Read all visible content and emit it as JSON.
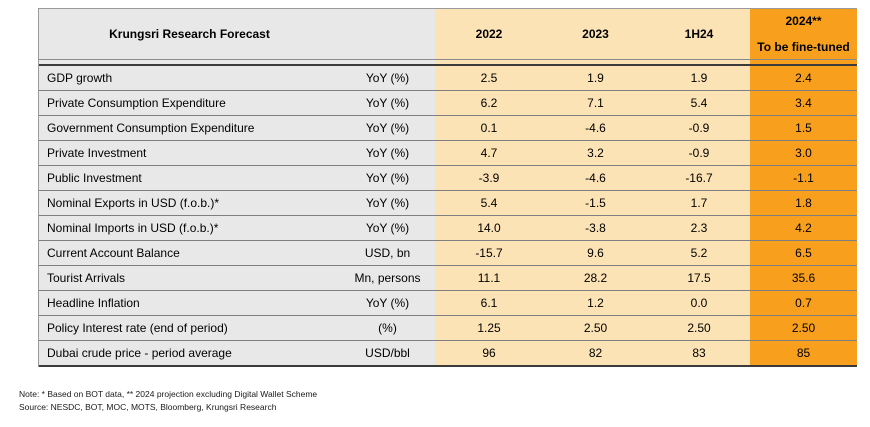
{
  "colors": {
    "header_gray": "#E8E8E8",
    "data_peach": "#FCE3B5",
    "forecast_orange": "#F8A01E"
  },
  "chart_data": {
    "type": "table",
    "title": "Krungsri Research Forecast",
    "column_headers": [
      "2022",
      "2023",
      "1H24",
      "2024**"
    ],
    "forecast_note": "To be fine-tuned",
    "layout": {
      "year_columns_bg": "light peach",
      "forecast_column_bg": "orange",
      "label_columns_bg": "light gray"
    },
    "rows": [
      {
        "label": "GDP growth",
        "unit": "YoY (%)",
        "values": [
          "2.5",
          "1.9",
          "1.9",
          "2.4"
        ]
      },
      {
        "label": "Private Consumption Expenditure",
        "unit": "YoY (%)",
        "values": [
          "6.2",
          "7.1",
          "5.4",
          "3.4"
        ]
      },
      {
        "label": "Government Consumption Expenditure",
        "unit": "YoY (%)",
        "values": [
          "0.1",
          "-4.6",
          "-0.9",
          "1.5"
        ]
      },
      {
        "label": "Private Investment",
        "unit": "YoY (%)",
        "values": [
          "4.7",
          "3.2",
          "-0.9",
          "3.0"
        ]
      },
      {
        "label": "Public Investment",
        "unit": "YoY (%)",
        "values": [
          "-3.9",
          "-4.6",
          "-16.7",
          "-1.1"
        ]
      },
      {
        "label": "Nominal Exports in USD (f.o.b.)*",
        "unit": "YoY (%)",
        "values": [
          "5.4",
          "-1.5",
          "1.7",
          "1.8"
        ]
      },
      {
        "label": "Nominal Imports in USD (f.o.b.)*",
        "unit": "YoY (%)",
        "values": [
          "14.0",
          "-3.8",
          "2.3",
          "4.2"
        ]
      },
      {
        "label": "Current Account Balance",
        "unit": "USD, bn",
        "values": [
          "-15.7",
          "9.6",
          "5.2",
          "6.5"
        ]
      },
      {
        "label": "Tourist Arrivals",
        "unit": "Mn, persons",
        "values": [
          "11.1",
          "28.2",
          "17.5",
          "35.6"
        ]
      },
      {
        "label": "Headline Inflation",
        "unit": "YoY (%)",
        "values": [
          "6.1",
          "1.2",
          "0.0",
          "0.7"
        ]
      },
      {
        "label": "Policy Interest rate (end of period)",
        "unit": "(%)",
        "values": [
          "1.25",
          "2.50",
          "2.50",
          "2.50"
        ]
      },
      {
        "label": "Dubai crude price - period average",
        "unit": "USD/bbl",
        "values": [
          "96",
          "82",
          "83",
          "85"
        ]
      }
    ]
  },
  "notes": {
    "note": "Note: * Based on BOT data, ** 2024 projection excluding Digital Wallet Scheme",
    "source": "Source: NESDC, BOT, MOC, MOTS, Bloomberg, Krungsri Research"
  }
}
